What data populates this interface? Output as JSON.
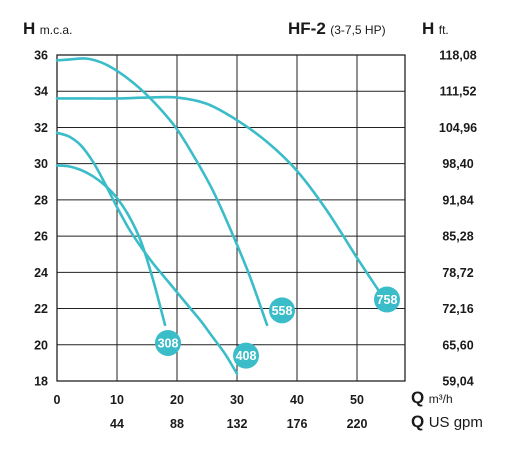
{
  "header": {
    "left_symbol": "H",
    "left_unit": "m.c.a.",
    "model": "HF-2",
    "model_range": "(3-7,5 HP)",
    "right_symbol": "H",
    "right_unit": "ft."
  },
  "axis_footer": {
    "q1_symbol": "Q",
    "q1_unit": "m³/h",
    "q2_symbol": "Q",
    "q2_unit": "US gpm"
  },
  "chart_data": {
    "type": "line",
    "title": "HF-2 (3-7,5 HP)",
    "xlabel": "Q m³/h",
    "ylabel": "H m.c.a.",
    "xlim": [
      0,
      58
    ],
    "ylim": [
      18,
      36
    ],
    "x_ticks": [
      "0",
      "10",
      "20",
      "30",
      "40",
      "50"
    ],
    "x_tick_values": [
      0,
      10,
      20,
      30,
      40,
      50
    ],
    "x2_ticks": [
      "44",
      "88",
      "132",
      "176",
      "220"
    ],
    "x2_tick_values": [
      10,
      20,
      30,
      40,
      50
    ],
    "y_ticks": [
      "18",
      "20",
      "22",
      "24",
      "26",
      "28",
      "30",
      "32",
      "34",
      "36"
    ],
    "y_tick_values": [
      18,
      20,
      22,
      24,
      26,
      28,
      30,
      32,
      34,
      36
    ],
    "y2_ticks": [
      "59,04",
      "65,60",
      "72,16",
      "78,72",
      "85,28",
      "91,84",
      "98,40",
      "104,96",
      "111,52",
      "118,08"
    ],
    "grid": true,
    "line_color": "#3bbcc9",
    "series": [
      {
        "name": "308",
        "x": [
          0,
          2,
          4,
          6,
          8,
          10,
          12,
          14,
          16,
          18
        ],
        "y": [
          29.9,
          29.85,
          29.65,
          29.3,
          28.8,
          28.1,
          27.1,
          25.7,
          23.6,
          21.1
        ],
        "label_at": [
          18.5,
          20.1
        ]
      },
      {
        "name": "408",
        "x": [
          0,
          2,
          4,
          6,
          8,
          10,
          12,
          14,
          16,
          18,
          20,
          22,
          24,
          26,
          28,
          30
        ],
        "y": [
          31.7,
          31.5,
          31.0,
          30.1,
          28.9,
          27.6,
          26.4,
          25.4,
          24.5,
          23.7,
          22.9,
          22.1,
          21.3,
          20.4,
          19.5,
          18.4
        ],
        "label_at": [
          31.5,
          19.4
        ]
      },
      {
        "name": "558",
        "x": [
          0,
          2,
          5,
          8,
          11,
          14,
          17,
          20,
          23,
          26,
          29,
          32,
          35
        ],
        "y": [
          35.7,
          35.75,
          35.8,
          35.5,
          34.9,
          34.1,
          33.1,
          31.9,
          30.3,
          28.5,
          26.3,
          23.9,
          21.1
        ],
        "label_at": [
          37.5,
          21.9
        ]
      },
      {
        "name": "758",
        "x": [
          0,
          5,
          10,
          15,
          20,
          25,
          30,
          35,
          40,
          45,
          50,
          54
        ],
        "y": [
          33.6,
          33.6,
          33.6,
          33.65,
          33.65,
          33.3,
          32.4,
          31.2,
          29.6,
          27.4,
          24.8,
          22.8
        ],
        "label_at": [
          55,
          22.5
        ]
      }
    ]
  }
}
